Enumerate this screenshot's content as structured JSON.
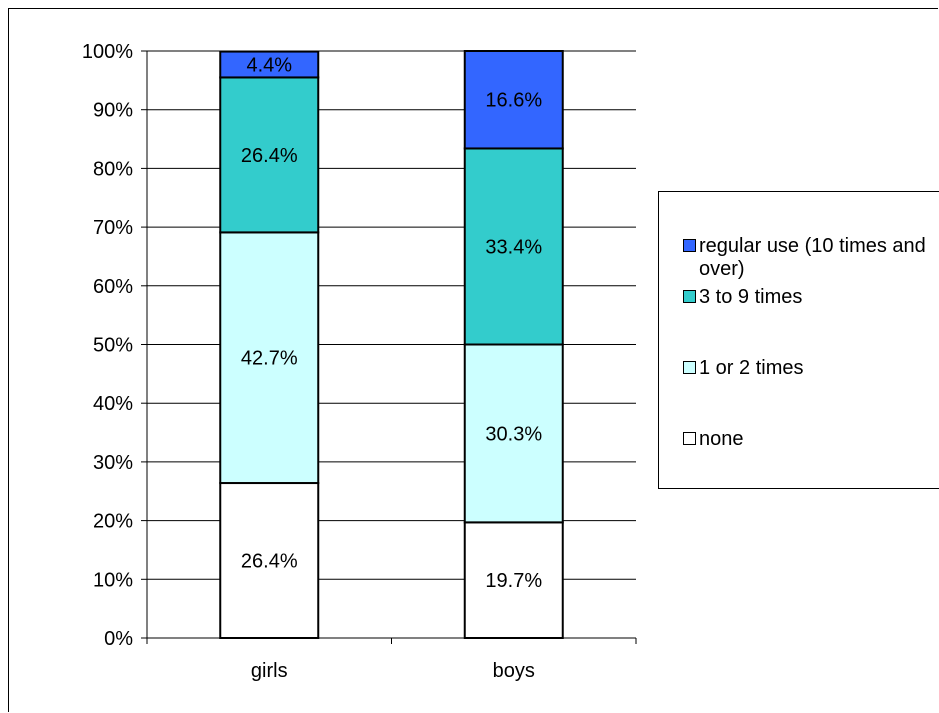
{
  "chart_data": {
    "type": "bar",
    "stacked": true,
    "percent_stacked": true,
    "categories": [
      "girls",
      "boys"
    ],
    "series": [
      {
        "name": "none",
        "values": [
          26.4,
          19.7
        ],
        "color": "#ffffff"
      },
      {
        "name": "1 or 2 times",
        "values": [
          42.7,
          30.3
        ],
        "color": "#ccffff"
      },
      {
        "name": "3 to 9 times",
        "values": [
          26.4,
          33.4
        ],
        "color": "#33cccc"
      },
      {
        "name": "regular use (10 times and over)",
        "values": [
          4.4,
          16.6
        ],
        "color": "#3366ff"
      }
    ],
    "yticks": [
      "0%",
      "10%",
      "20%",
      "30%",
      "40%",
      "50%",
      "60%",
      "70%",
      "80%",
      "90%",
      "100%"
    ],
    "ylim": [
      0,
      100
    ],
    "grid": true,
    "legend_position": "right",
    "title": "",
    "xlabel": "",
    "ylabel": ""
  },
  "legend": {
    "items": [
      {
        "label": "regular use (10 times and over)",
        "color": "#3366ff"
      },
      {
        "label": "3 to 9 times",
        "color": "#33cccc"
      },
      {
        "label": "1 or 2 times",
        "color": "#ccffff"
      },
      {
        "label": "none",
        "color": "#ffffff"
      }
    ]
  }
}
